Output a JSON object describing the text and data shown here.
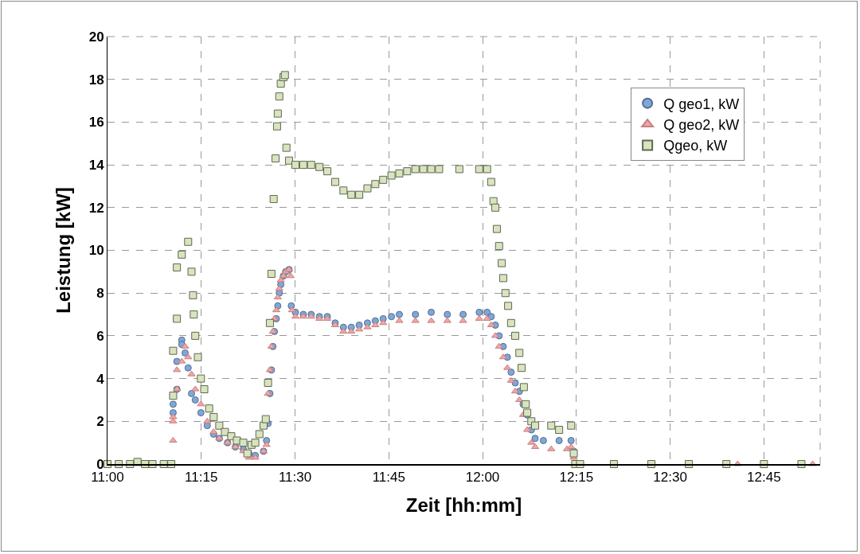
{
  "chart_data": {
    "type": "scatter",
    "xlabel": "Zeit [hh:mm]",
    "ylabel": "Leistung [kW]",
    "xlim": [
      11,
      12.9
    ],
    "xticks": [
      {
        "value": 11,
        "label": "11:00"
      },
      {
        "value": 11.25,
        "label": "11:15"
      },
      {
        "value": 11.5,
        "label": "11:30"
      },
      {
        "value": 11.75,
        "label": "11:45"
      },
      {
        "value": 12,
        "label": "12:00"
      },
      {
        "value": 12.25,
        "label": "12:15"
      },
      {
        "value": 12.5,
        "label": "12:30"
      },
      {
        "value": 12.75,
        "label": "12:45"
      }
    ],
    "ylim": [
      0,
      20
    ],
    "yticks": [
      0,
      2,
      4,
      6,
      8,
      10,
      12,
      14,
      16,
      18,
      20
    ],
    "grid": true,
    "legend": "top right",
    "series": [
      {
        "name": "Q geo1, kW",
        "color": "#7fa7d9",
        "marker": "circle",
        "x": [
          11.175,
          11.175,
          11.185,
          11.185,
          11.198,
          11.198,
          11.207,
          11.215,
          11.224,
          11.234,
          11.249,
          11.266,
          11.283,
          11.298,
          11.32,
          11.341,
          11.362,
          11.377,
          11.394,
          11.416,
          11.424,
          11.428,
          11.433,
          11.437,
          11.441,
          11.445,
          11.45,
          11.454,
          11.458,
          11.462,
          11.469,
          11.475,
          11.484,
          11.49,
          11.501,
          11.522,
          11.543,
          11.565,
          11.586,
          11.607,
          11.629,
          11.65,
          11.671,
          11.693,
          11.714,
          11.735,
          11.757,
          11.778,
          11.821,
          11.863,
          11.906,
          11.948,
          11.991,
          12.012,
          12.023,
          12.034,
          12.044,
          12.055,
          12.066,
          12.076,
          12.087,
          12.098,
          12.108,
          12.119,
          12.13,
          12.14,
          12.162,
          12.204,
          12.236,
          12.243
        ],
        "values": [
          2.4,
          2.8,
          3.5,
          4.8,
          5.8,
          5.6,
          5.2,
          4.5,
          3.3,
          3.0,
          2.4,
          1.8,
          1.4,
          1.2,
          1.0,
          0.8,
          0.7,
          0.5,
          0.4,
          0.6,
          1.1,
          1.9,
          3.3,
          4.4,
          5.5,
          6.2,
          6.8,
          7.4,
          8.0,
          8.4,
          8.8,
          9.0,
          9.1,
          7.4,
          7.1,
          7.0,
          7.0,
          6.9,
          6.9,
          6.6,
          6.4,
          6.4,
          6.5,
          6.6,
          6.7,
          6.8,
          6.9,
          7.0,
          7.0,
          7.1,
          7.0,
          7.0,
          7.1,
          7.1,
          6.9,
          6.5,
          6.0,
          5.5,
          5.0,
          4.3,
          3.8,
          3.4,
          2.8,
          2.3,
          1.6,
          1.2,
          1.1,
          1.1,
          1.1,
          0.6
        ]
      },
      {
        "name": "Q geo2, kW",
        "color": "#f4a3a3",
        "marker": "triangle",
        "x": [
          11.175,
          11.175,
          11.175,
          11.185,
          11.185,
          11.198,
          11.207,
          11.215,
          11.224,
          11.234,
          11.249,
          11.266,
          11.283,
          11.298,
          11.32,
          11.341,
          11.362,
          11.377,
          11.394,
          11.416,
          11.424,
          11.428,
          11.433,
          11.437,
          11.441,
          11.445,
          11.45,
          11.454,
          11.458,
          11.462,
          11.469,
          11.475,
          11.484,
          11.488,
          11.492,
          11.501,
          11.522,
          11.543,
          11.565,
          11.586,
          11.607,
          11.629,
          11.65,
          11.671,
          11.693,
          11.714,
          11.735,
          11.778,
          11.821,
          11.863,
          11.906,
          11.948,
          11.991,
          12.012,
          12.023,
          12.034,
          12.044,
          12.055,
          12.066,
          12.076,
          12.087,
          12.098,
          12.108,
          12.119,
          12.13,
          12.14,
          12.183,
          12.225,
          12.236,
          12.243,
          12.68,
          12.88
        ],
        "values": [
          1.1,
          2.0,
          2.2,
          3.5,
          4.4,
          4.8,
          5.5,
          5.0,
          4.2,
          3.5,
          2.8,
          2.0,
          1.5,
          1.2,
          1.0,
          0.8,
          0.6,
          0.3,
          0.3,
          0.6,
          0.9,
          3.3,
          4.4,
          5.5,
          6.2,
          6.8,
          7.2,
          7.8,
          8.2,
          8.6,
          8.8,
          9.0,
          9.1,
          8.8,
          7.2,
          6.9,
          6.9,
          6.9,
          6.8,
          6.8,
          6.5,
          6.2,
          6.2,
          6.3,
          6.4,
          6.5,
          6.6,
          6.7,
          6.7,
          6.7,
          6.7,
          6.7,
          6.8,
          6.8,
          6.5,
          6.0,
          5.5,
          5.0,
          4.5,
          3.9,
          3.4,
          3.0,
          2.3,
          1.6,
          1.0,
          0.8,
          0.7,
          0.7,
          0.8,
          0.3,
          0,
          0
        ]
      },
      {
        "name": "Qgeo, kW",
        "color": "#d7e4bd",
        "marker": "square",
        "x": [
          11,
          11.03,
          11.06,
          11.08,
          11.1,
          11.12,
          11.15,
          11.17,
          11.175,
          11.175,
          11.185,
          11.185,
          11.198,
          11.215,
          11.224,
          11.228,
          11.23,
          11.234,
          11.241,
          11.249,
          11.258,
          11.271,
          11.283,
          11.298,
          11.313,
          11.33,
          11.345,
          11.362,
          11.373,
          11.384,
          11.394,
          11.405,
          11.416,
          11.422,
          11.428,
          11.433,
          11.437,
          11.443,
          11.448,
          11.452,
          11.454,
          11.458,
          11.462,
          11.469,
          11.473,
          11.477,
          11.484,
          11.501,
          11.522,
          11.543,
          11.565,
          11.586,
          11.607,
          11.629,
          11.65,
          11.671,
          11.693,
          11.714,
          11.735,
          11.757,
          11.778,
          11.799,
          11.821,
          11.842,
          11.863,
          11.884,
          11.938,
          11.991,
          12.012,
          12.023,
          12.029,
          12.034,
          12.038,
          12.044,
          12.051,
          12.055,
          12.061,
          12.068,
          12.076,
          12.087,
          12.098,
          12.104,
          12.11,
          12.115,
          12.119,
          12.13,
          12.14,
          12.183,
          12.204,
          12.236,
          12.243,
          12.247,
          12.26,
          12.35,
          12.45,
          12.55,
          12.65,
          12.75,
          12.85
        ],
        "values": [
          0,
          0,
          0,
          0.1,
          0,
          0,
          0,
          0,
          3.2,
          5.3,
          6.8,
          9.2,
          9.8,
          10.4,
          9.0,
          7.9,
          7.0,
          6.0,
          5.0,
          4.0,
          3.5,
          2.6,
          2.2,
          1.8,
          1.5,
          1.3,
          1.1,
          1.0,
          0.5,
          0.9,
          1.0,
          1.4,
          1.8,
          2.1,
          3.8,
          6.6,
          8.9,
          12.4,
          14.3,
          15.8,
          16.4,
          17.2,
          17.8,
          18.1,
          18.2,
          14.8,
          14.2,
          14.0,
          14.0,
          14.0,
          13.9,
          13.7,
          13.2,
          12.8,
          12.6,
          12.6,
          12.9,
          13.1,
          13.3,
          13.5,
          13.6,
          13.7,
          13.8,
          13.8,
          13.8,
          13.8,
          13.8,
          13.8,
          13.8,
          13.2,
          12.3,
          12.0,
          11.0,
          10.2,
          9.4,
          8.7,
          8.0,
          7.4,
          6.6,
          6.0,
          5.2,
          4.5,
          3.6,
          2.8,
          2.4,
          2.0,
          1.8,
          1.8,
          1.6,
          1.8,
          0.5,
          0,
          0,
          0,
          0,
          0,
          0,
          0,
          0
        ]
      }
    ]
  }
}
